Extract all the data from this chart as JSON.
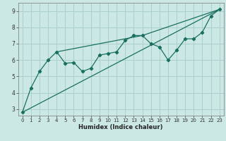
{
  "xlabel": "Humidex (Indice chaleur)",
  "ylabel": "",
  "bg_color": "#cce8e5",
  "grid_color": "#aacfcc",
  "line_color": "#1a7060",
  "xlim": [
    -0.5,
    23.5
  ],
  "ylim": [
    2.6,
    9.5
  ],
  "xticks": [
    0,
    1,
    2,
    3,
    4,
    5,
    6,
    7,
    8,
    9,
    10,
    11,
    12,
    13,
    14,
    15,
    16,
    17,
    18,
    19,
    20,
    21,
    22,
    23
  ],
  "yticks": [
    3,
    4,
    5,
    6,
    7,
    8,
    9
  ],
  "line1_x": [
    0,
    1,
    2,
    3,
    4,
    5,
    6,
    7,
    8,
    9,
    10,
    11,
    12,
    13,
    14,
    15,
    16,
    17,
    18,
    19,
    20,
    21,
    22,
    23
  ],
  "line1_y": [
    2.8,
    4.3,
    5.3,
    6.0,
    6.5,
    5.8,
    5.85,
    5.3,
    5.5,
    6.3,
    6.4,
    6.5,
    7.2,
    7.5,
    7.5,
    7.0,
    6.8,
    6.0,
    6.6,
    7.3,
    7.3,
    7.7,
    8.7,
    9.1
  ],
  "line2_x": [
    0,
    23
  ],
  "line2_y": [
    2.8,
    9.1
  ],
  "line3_x": [
    4,
    14,
    23
  ],
  "line3_y": [
    6.5,
    7.5,
    9.1
  ],
  "xlabel_fontsize": 6.0,
  "tick_fontsize": 5.0
}
